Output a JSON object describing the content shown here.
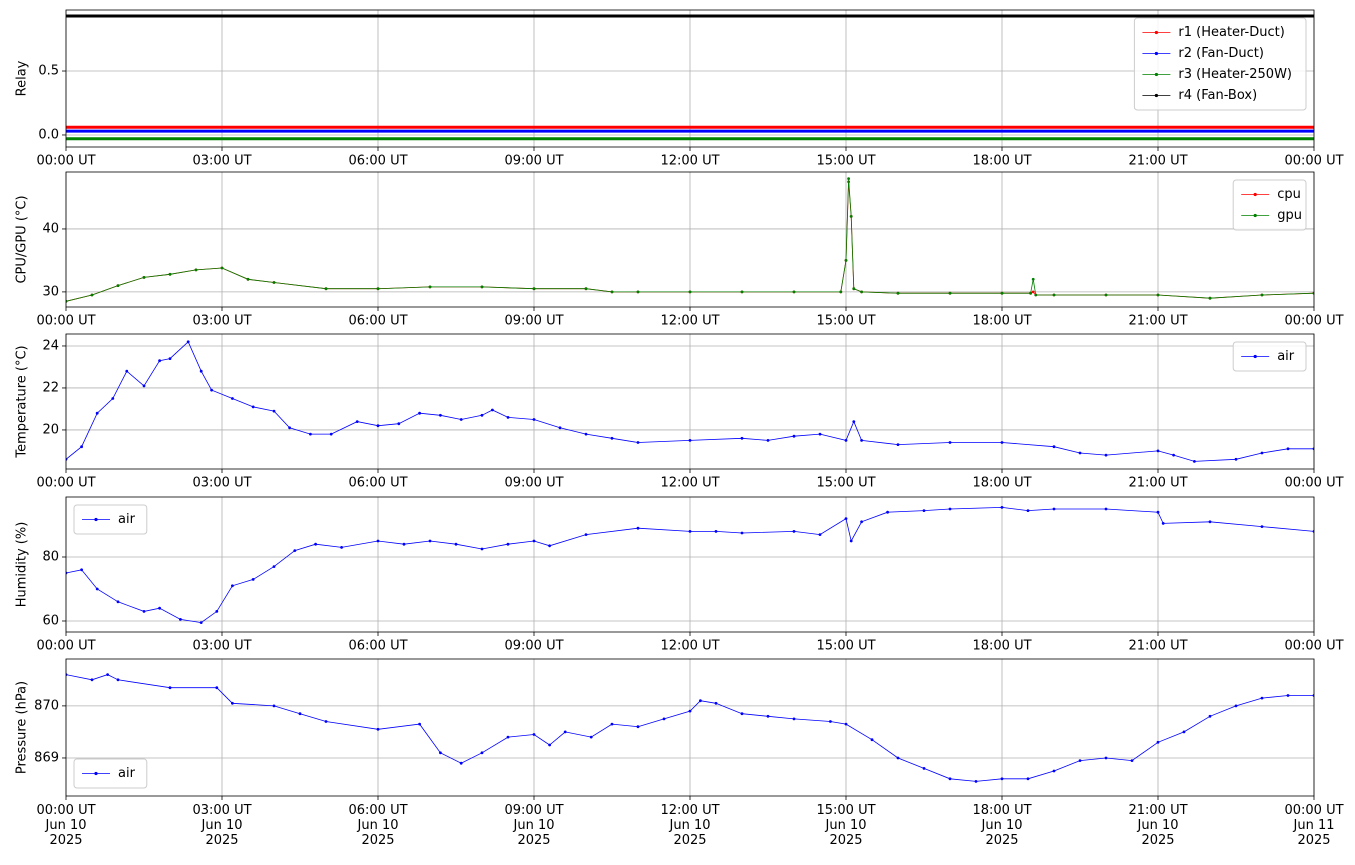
{
  "chart_data": [
    {
      "type": "line",
      "ylabel": "Relay",
      "xlim": [
        0,
        24
      ],
      "ylim": [
        -0.094,
        0.977
      ],
      "xticks": [
        {
          "value": 0,
          "label": "00:00 UT"
        },
        {
          "value": 3,
          "label": "03:00 UT"
        },
        {
          "value": 6,
          "label": "06:00 UT"
        },
        {
          "value": 9,
          "label": "09:00 UT"
        },
        {
          "value": 12,
          "label": "12:00 UT"
        },
        {
          "value": 15,
          "label": "15:00 UT"
        },
        {
          "value": 18,
          "label": "18:00 UT"
        },
        {
          "value": 21,
          "label": "21:00 UT"
        },
        {
          "value": 24,
          "label": "00:00 UT"
        }
      ],
      "yticks": [
        {
          "value": 0,
          "label": "0.0"
        },
        0.5
      ],
      "grid": true,
      "legend": "upper-right",
      "x": [
        0,
        24
      ],
      "series": [
        {
          "name": "r1 (Heater-Duct)",
          "color": "#ff0000",
          "values": [
            0.06,
            0.06
          ]
        },
        {
          "name": "r2 (Fan-Duct)",
          "color": "#0000ff",
          "values": [
            0.03,
            0.03
          ]
        },
        {
          "name": "r3 (Heater-250W)",
          "color": "#008000",
          "values": [
            -0.03,
            -0.03
          ]
        },
        {
          "name": "r4 (Fan-Box)",
          "color": "#000000",
          "values": [
            0.93,
            0.93
          ]
        }
      ]
    },
    {
      "type": "line",
      "ylabel": "CPU/GPU (°C)",
      "xlim": [
        0,
        24
      ],
      "ylim": [
        27.6,
        49.05
      ],
      "xticks": [
        {
          "value": 0,
          "label": "00:00 UT"
        },
        {
          "value": 3,
          "label": "03:00 UT"
        },
        {
          "value": 6,
          "label": "06:00 UT"
        },
        {
          "value": 9,
          "label": "09:00 UT"
        },
        {
          "value": 12,
          "label": "12:00 UT"
        },
        {
          "value": 15,
          "label": "15:00 UT"
        },
        {
          "value": 18,
          "label": "18:00 UT"
        },
        {
          "value": 21,
          "label": "21:00 UT"
        },
        {
          "value": 24,
          "label": "00:00 UT"
        }
      ],
      "yticks": [
        30,
        40
      ],
      "grid": true,
      "legend": "upper-right",
      "x": [
        0,
        0.5,
        1,
        1.5,
        2,
        2.5,
        3,
        3.5,
        4,
        5,
        6,
        7,
        8,
        9,
        10,
        10.5,
        11,
        12,
        13,
        14,
        14.9,
        15,
        15.05,
        15.1,
        15.15,
        15.3,
        16,
        17,
        18,
        18.55,
        18.6,
        18.65,
        19,
        20,
        21,
        22,
        23,
        24
      ],
      "series": [
        {
          "name": "cpu",
          "color": "#ff0000",
          "values": [
            28.5,
            29.5,
            31,
            32.3,
            32.8,
            33.5,
            33.8,
            32,
            31.5,
            30.5,
            30.5,
            30.8,
            30.8,
            30.5,
            30.5,
            30,
            30,
            30,
            30,
            30,
            30,
            35,
            47.5,
            42,
            30.5,
            30,
            29.8,
            29.8,
            29.8,
            29.8,
            30,
            29.5,
            29.5,
            29.5,
            29.5,
            29,
            29.5,
            29.8
          ]
        },
        {
          "name": "gpu",
          "color": "#008000",
          "values": [
            28.5,
            29.5,
            31,
            32.3,
            32.8,
            33.5,
            33.8,
            32,
            31.5,
            30.5,
            30.5,
            30.8,
            30.8,
            30.5,
            30.5,
            30,
            30,
            30,
            30,
            30,
            30,
            35,
            48,
            42,
            30.5,
            30,
            29.8,
            29.8,
            29.8,
            29.8,
            32,
            29.5,
            29.5,
            29.5,
            29.5,
            29,
            29.5,
            29.8
          ]
        }
      ]
    },
    {
      "type": "line",
      "ylabel": "Temperature (°C)",
      "xlim": [
        0,
        24
      ],
      "ylim": [
        18.14,
        24.57
      ],
      "xticks": [
        {
          "value": 0,
          "label": "00:00 UT"
        },
        {
          "value": 3,
          "label": "03:00 UT"
        },
        {
          "value": 6,
          "label": "06:00 UT"
        },
        {
          "value": 9,
          "label": "09:00 UT"
        },
        {
          "value": 12,
          "label": "12:00 UT"
        },
        {
          "value": 15,
          "label": "15:00 UT"
        },
        {
          "value": 18,
          "label": "18:00 UT"
        },
        {
          "value": 21,
          "label": "21:00 UT"
        },
        {
          "value": 24,
          "label": "00:00 UT"
        }
      ],
      "yticks": [
        20,
        22,
        24
      ],
      "grid": true,
      "legend": "upper-right",
      "x": [
        0,
        0.3,
        0.6,
        0.9,
        1.17,
        1.5,
        1.8,
        2.0,
        2.35,
        2.6,
        2.8,
        3.2,
        3.6,
        4.0,
        4.3,
        4.7,
        5.1,
        5.6,
        6,
        6.4,
        6.8,
        7.2,
        7.6,
        8.0,
        8.2,
        8.5,
        9,
        9.5,
        10,
        10.5,
        11,
        12,
        13,
        13.5,
        14,
        14.5,
        15,
        15.15,
        15.3,
        16,
        17,
        18,
        19,
        19.5,
        20,
        21,
        21.3,
        21.7,
        22.5,
        23,
        23.5,
        24
      ],
      "series": [
        {
          "name": "air",
          "color": "#0000ff",
          "values": [
            18.6,
            19.2,
            20.8,
            21.5,
            22.8,
            22.1,
            23.3,
            23.4,
            24.2,
            22.8,
            21.9,
            21.5,
            21.1,
            20.9,
            20.1,
            19.8,
            19.8,
            20.4,
            20.2,
            20.3,
            20.8,
            20.7,
            20.5,
            20.7,
            20.95,
            20.6,
            20.5,
            20.1,
            19.8,
            19.6,
            19.4,
            19.5,
            19.6,
            19.5,
            19.7,
            19.8,
            19.5,
            20.4,
            19.5,
            19.3,
            19.4,
            19.4,
            19.2,
            18.9,
            18.8,
            19.0,
            18.8,
            18.5,
            18.6,
            18.9,
            19.1,
            19.1
          ]
        }
      ]
    },
    {
      "type": "line",
      "ylabel": "Humidity (%)",
      "xlim": [
        0,
        24
      ],
      "ylim": [
        56.56,
        98.75
      ],
      "xticks": [
        {
          "value": 0,
          "label": "00:00 UT"
        },
        {
          "value": 3,
          "label": "03:00 UT"
        },
        {
          "value": 6,
          "label": "06:00 UT"
        },
        {
          "value": 9,
          "label": "09:00 UT"
        },
        {
          "value": 12,
          "label": "12:00 UT"
        },
        {
          "value": 15,
          "label": "15:00 UT"
        },
        {
          "value": 18,
          "label": "18:00 UT"
        },
        {
          "value": 21,
          "label": "21:00 UT"
        },
        {
          "value": 24,
          "label": "00:00 UT"
        }
      ],
      "yticks": [
        60,
        80
      ],
      "grid": true,
      "legend": "upper-left",
      "x": [
        0,
        0.3,
        0.6,
        1,
        1.5,
        1.8,
        2.2,
        2.6,
        2.9,
        3.2,
        3.6,
        4,
        4.4,
        4.8,
        5.3,
        6,
        6.5,
        7,
        7.5,
        8,
        8.5,
        9,
        9.3,
        10,
        11,
        12,
        12.5,
        13,
        14,
        14.5,
        15,
        15.1,
        15.3,
        15.8,
        16.5,
        17,
        18,
        18.5,
        19,
        20,
        21,
        21.1,
        22,
        23,
        24
      ],
      "series": [
        {
          "name": "air",
          "color": "#0000ff",
          "values": [
            75,
            76,
            70,
            66,
            63,
            64,
            60.5,
            59.5,
            63,
            71,
            73,
            77,
            82,
            84,
            83,
            85,
            84,
            85,
            84,
            82.5,
            84,
            85,
            83.5,
            87,
            89,
            88,
            88,
            87.5,
            88,
            87,
            92,
            85,
            91,
            94,
            94.5,
            95,
            95.5,
            94.5,
            95,
            95,
            94,
            90.5,
            91,
            89.5,
            88
          ]
        }
      ]
    },
    {
      "type": "line",
      "ylabel": "Pressure (hPa)",
      "xlim": [
        0,
        24
      ],
      "ylim": [
        868.27,
        870.9
      ],
      "xticks": [
        {
          "value": 0,
          "label": "00:00 UT\nJun 10\n2025"
        },
        {
          "value": 3,
          "label": "03:00 UT\nJun 10\n2025"
        },
        {
          "value": 6,
          "label": "06:00 UT\nJun 10\n2025"
        },
        {
          "value": 9,
          "label": "09:00 UT\nJun 10\n2025"
        },
        {
          "value": 12,
          "label": "12:00 UT\nJun 10\n2025"
        },
        {
          "value": 15,
          "label": "15:00 UT\nJun 10\n2025"
        },
        {
          "value": 18,
          "label": "18:00 UT\nJun 10\n2025"
        },
        {
          "value": 21,
          "label": "21:00 UT\nJun 10\n2025"
        },
        {
          "value": 24,
          "label": "00:00 UT\nJun 11\n2025"
        }
      ],
      "yticks": [
        869,
        870
      ],
      "grid": true,
      "legend": "lower-left",
      "x": [
        0,
        0.5,
        0.8,
        1,
        2,
        2.9,
        3.2,
        4,
        4.5,
        5,
        6,
        6.8,
        7.2,
        7.6,
        8,
        8.5,
        9,
        9.3,
        9.6,
        10.1,
        10.5,
        11,
        11.5,
        12,
        12.2,
        12.5,
        13,
        13.5,
        14,
        14.7,
        15,
        15.5,
        16,
        16.5,
        17,
        17.5,
        18,
        18.5,
        19,
        19.5,
        20,
        20.5,
        21,
        21.5,
        22,
        22.5,
        23,
        23.5,
        24
      ],
      "series": [
        {
          "name": "air",
          "color": "#0000ff",
          "values": [
            870.6,
            870.5,
            870.6,
            870.5,
            870.35,
            870.35,
            870.05,
            870,
            869.85,
            869.7,
            869.55,
            869.65,
            869.1,
            868.9,
            869.1,
            869.4,
            869.45,
            869.25,
            869.5,
            869.4,
            869.65,
            869.6,
            869.75,
            869.9,
            870.1,
            870.05,
            869.85,
            869.8,
            869.75,
            869.7,
            869.65,
            869.35,
            869.0,
            868.8,
            868.6,
            868.55,
            868.6,
            868.6,
            868.75,
            868.95,
            869.0,
            868.95,
            869.3,
            869.5,
            869.8,
            870.0,
            870.15,
            870.2,
            870.2
          ]
        }
      ]
    }
  ]
}
